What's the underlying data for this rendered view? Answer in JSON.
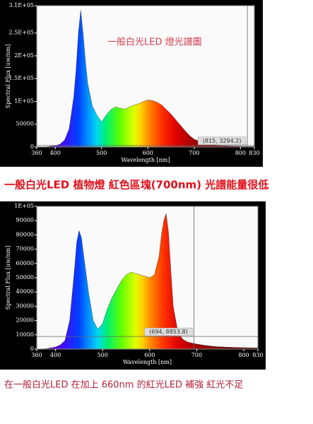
{
  "chart_data": [
    {
      "type": "area",
      "annotation": "一般白光LED  燈光譜圖",
      "xlabel": "Wavelength [nm]",
      "ylabel": "Spectral Flux [uw/nm]",
      "x": [
        360,
        380,
        400,
        410,
        420,
        430,
        440,
        445,
        450,
        455,
        460,
        465,
        470,
        480,
        490,
        500,
        510,
        520,
        530,
        540,
        550,
        560,
        570,
        580,
        590,
        600,
        610,
        620,
        630,
        640,
        650,
        660,
        670,
        680,
        690,
        700,
        720,
        740,
        760,
        780,
        800,
        830
      ],
      "values": [
        0,
        500,
        3000,
        6000,
        15000,
        40000,
        110000,
        170000,
        250000,
        300000,
        250000,
        190000,
        140000,
        90000,
        70000,
        55000,
        70000,
        82000,
        88000,
        85000,
        83000,
        88000,
        92000,
        95000,
        100000,
        103000,
        102000,
        98000,
        92000,
        82000,
        72000,
        60000,
        48000,
        36000,
        25000,
        17000,
        9000,
        5000,
        3000,
        2000,
        1500,
        1000
      ],
      "xlim": [
        360,
        830
      ],
      "xticks": [
        360,
        400,
        500,
        600,
        700,
        800,
        830
      ],
      "ylim": [
        0,
        310000
      ],
      "yticks": [
        0,
        50000,
        {
          "value": 100000,
          "label": "1E+05"
        },
        {
          "value": 150000,
          "label": "1.5E+05"
        },
        {
          "value": 200000,
          "label": "2E+05"
        },
        {
          "value": 250000,
          "label": "2.5E+05"
        },
        {
          "value": 310000,
          "label": "3.1E+05"
        }
      ],
      "grid": false,
      "cursor": {
        "x": 815,
        "y": 3294.2,
        "label": "(815, 3294.2)"
      }
    },
    {
      "type": "area",
      "xlabel": "Wavelength [nm]",
      "ylabel": "Spectral Flux [uw/nm]",
      "x": [
        360,
        380,
        400,
        410,
        420,
        430,
        440,
        445,
        450,
        455,
        460,
        470,
        480,
        490,
        500,
        510,
        520,
        530,
        540,
        550,
        560,
        570,
        580,
        590,
        600,
        610,
        620,
        625,
        630,
        635,
        640,
        645,
        650,
        660,
        670,
        680,
        700,
        720,
        740,
        760,
        780,
        800,
        830
      ],
      "values": [
        0,
        300,
        1500,
        3000,
        6000,
        20000,
        55000,
        75000,
        83000,
        78000,
        65000,
        40000,
        20000,
        14000,
        18000,
        28000,
        36000,
        42000,
        48000,
        52000,
        54000,
        53000,
        52000,
        51000,
        50000,
        52000,
        65000,
        80000,
        90000,
        95000,
        82000,
        55000,
        30000,
        12000,
        7000,
        5000,
        3500,
        2500,
        1800,
        1400,
        1200,
        1000,
        800
      ],
      "xlim": [
        360,
        830
      ],
      "xticks": [
        360,
        400,
        500,
        600,
        700,
        800,
        830
      ],
      "ylim": [
        0,
        100000
      ],
      "yticks": [
        0,
        10000,
        20000,
        30000,
        40000,
        50000,
        60000,
        70000,
        80000,
        90000,
        {
          "value": 100000,
          "label": "1E+05"
        }
      ],
      "grid": false,
      "cursor": {
        "x": 694,
        "y": 8853.8,
        "label": "(694, 8853.8)"
      }
    }
  ],
  "captions": [
    "一般白光LED 植物燈 紅色區塊(700nm) 光譜能量很低",
    "在一般白光LED 在加上 660nm 的紅光LED 補強 紅光不足"
  ]
}
